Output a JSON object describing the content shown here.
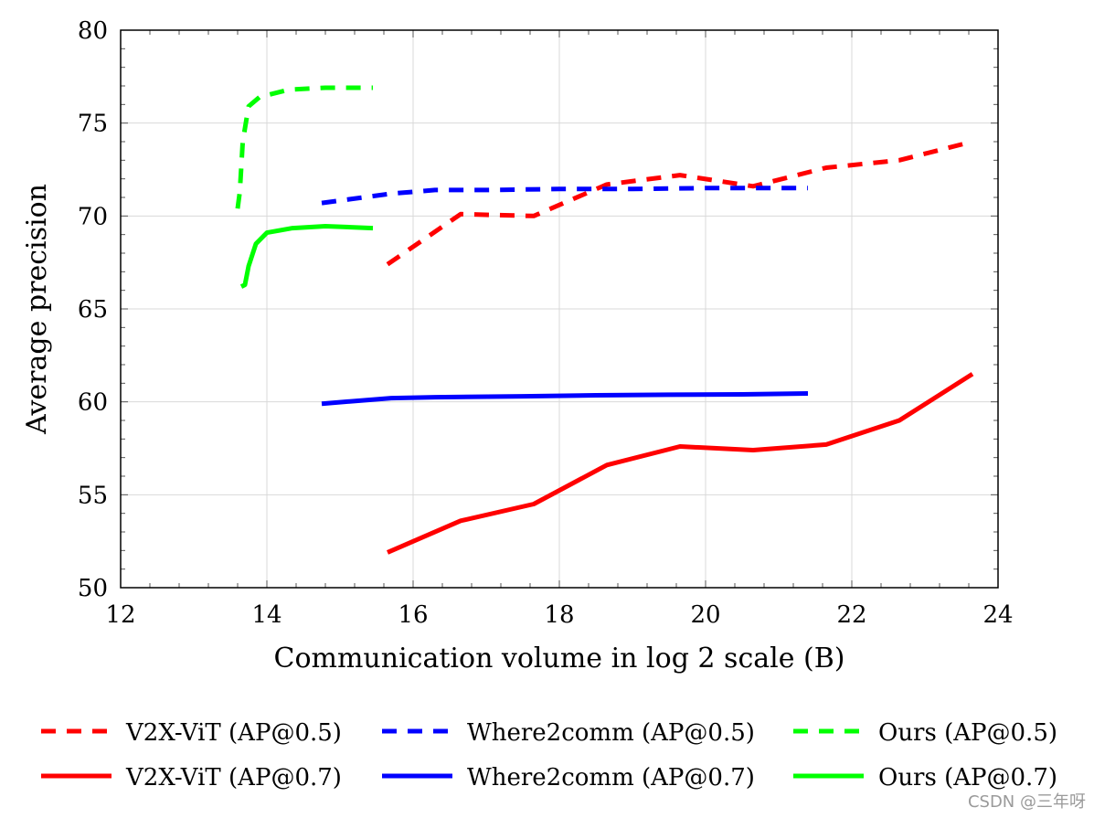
{
  "chart_data": {
    "type": "line",
    "title": "",
    "xlabel": "Communication volume in log 2 scale (B)",
    "ylabel": "Average precision",
    "xlim": [
      12,
      24
    ],
    "ylim": [
      50,
      80
    ],
    "xticks": [
      12,
      14,
      16,
      18,
      20,
      22,
      24
    ],
    "yticks": [
      50,
      55,
      60,
      65,
      70,
      75,
      80
    ],
    "grid": true,
    "legend_position": "bottom",
    "series": [
      {
        "name": "V2X-ViT (AP@0.5)",
        "color": "#ff0000",
        "style": "dashed",
        "x": [
          15.65,
          16.65,
          17.65,
          18.65,
          19.65,
          20.65,
          21.65,
          22.65,
          23.65
        ],
        "y": [
          67.4,
          70.1,
          70.0,
          71.7,
          72.2,
          71.6,
          72.6,
          73.0,
          74.0
        ]
      },
      {
        "name": "Where2comm (AP@0.5)",
        "color": "#0000ff",
        "style": "dashed",
        "x": [
          14.75,
          15.7,
          16.3,
          17.0,
          18.0,
          19.0,
          20.0,
          21.0,
          21.4
        ],
        "y": [
          70.7,
          71.2,
          71.4,
          71.4,
          71.45,
          71.45,
          71.5,
          71.5,
          71.5
        ]
      },
      {
        "name": "Ours (AP@0.5)",
        "color": "#00ff00",
        "style": "dashed",
        "x": [
          13.6,
          13.63,
          13.67,
          13.75,
          13.9,
          14.3,
          14.8,
          15.45
        ],
        "y": [
          70.4,
          71.3,
          74.0,
          75.9,
          76.4,
          76.8,
          76.9,
          76.9
        ]
      },
      {
        "name": "V2X-ViT (AP@0.7)",
        "color": "#ff0000",
        "style": "solid",
        "x": [
          15.65,
          16.65,
          17.65,
          18.65,
          19.65,
          20.65,
          21.65,
          22.65,
          23.65
        ],
        "y": [
          51.9,
          53.6,
          54.5,
          56.6,
          57.6,
          57.4,
          57.7,
          59.0,
          61.5
        ]
      },
      {
        "name": "Where2comm (AP@0.7)",
        "color": "#0000ff",
        "style": "solid",
        "x": [
          14.75,
          15.7,
          16.3,
          17.5,
          18.5,
          19.5,
          20.5,
          21.4
        ],
        "y": [
          59.9,
          60.2,
          60.25,
          60.3,
          60.35,
          60.38,
          60.4,
          60.45
        ]
      },
      {
        "name": "Ours (AP@0.7)",
        "color": "#00ff00",
        "style": "solid",
        "x": [
          13.65,
          13.7,
          13.75,
          13.85,
          14.0,
          14.35,
          14.8,
          15.45
        ],
        "y": [
          66.2,
          66.3,
          67.3,
          68.5,
          69.1,
          69.35,
          69.45,
          69.35
        ]
      }
    ]
  },
  "watermark": "CSDN @三年呀"
}
